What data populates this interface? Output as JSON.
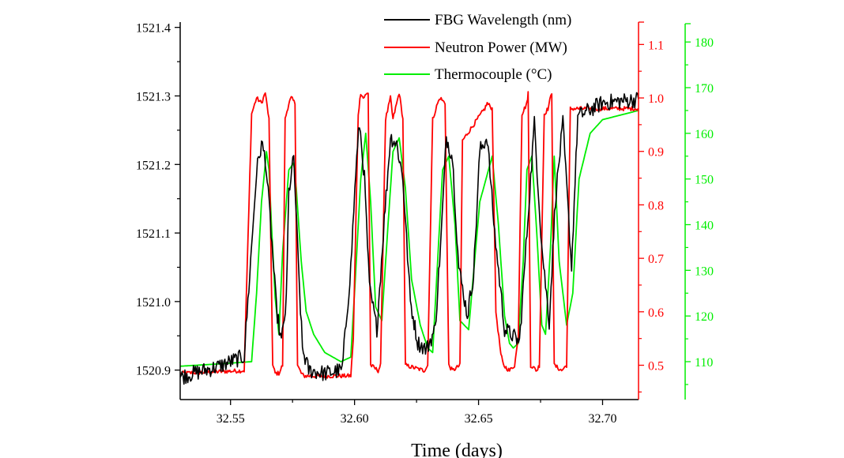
{
  "chart_data": {
    "type": "line",
    "title": "",
    "xlabel": "Time (days)",
    "ylabel": "",
    "xlim": [
      32.5297,
      32.7145
    ],
    "x_ticks": [
      "32.55",
      "32.60",
      "32.65",
      "32.70"
    ],
    "x_tick_values": [
      32.55,
      32.6,
      32.65,
      32.7
    ],
    "x_minor_step": 0.025,
    "grid": false,
    "legend_position": "top",
    "axes": [
      {
        "id": "left",
        "color": "#000000",
        "label": "",
        "ylim": [
          1520.857,
          1521.41
        ],
        "ticks": [
          "1520.9",
          "1521.0",
          "1521.1",
          "1521.2",
          "1521.3",
          "1521.4"
        ],
        "tick_values": [
          1520.9,
          1521.0,
          1521.1,
          1521.2,
          1521.3,
          1521.4
        ],
        "minor_step": 0.05
      },
      {
        "id": "right-red",
        "color": "#ff0000",
        "label": "",
        "ylim": [
          0.4358,
          1.1448
        ],
        "ticks": [
          "0.5",
          "0.6",
          "0.7",
          "0.8",
          "0.9",
          "1.0",
          "1.1"
        ],
        "tick_values": [
          0.5,
          0.6,
          0.7,
          0.8,
          0.9,
          1.0,
          1.1
        ],
        "minor_step": 0.05
      },
      {
        "id": "right-green",
        "color": "#00ee00",
        "label": "",
        "ylim": [
          101.7,
          184.7
        ],
        "ticks": [
          "110",
          "120",
          "130",
          "140",
          "150",
          "160",
          "170",
          "180"
        ],
        "tick_values": [
          110,
          120,
          130,
          140,
          150,
          160,
          170,
          180
        ],
        "minor_step": 5
      }
    ],
    "series": [
      {
        "name": "FBG Wavelength (nm)",
        "axis": "left",
        "color": "#000000",
        "noise": 0.012,
        "x": [
          32.5297,
          32.545,
          32.5555,
          32.5585,
          32.5605,
          32.5625,
          32.564,
          32.566,
          32.5685,
          32.5705,
          32.5725,
          32.5735,
          32.5755,
          32.577,
          32.579,
          32.5815,
          32.588,
          32.595,
          32.5985,
          32.6005,
          32.602,
          32.604,
          32.606,
          32.609,
          32.612,
          32.6145,
          32.617,
          32.6195,
          32.6225,
          32.6255,
          32.629,
          32.6325,
          32.635,
          32.637,
          32.6395,
          32.642,
          32.6455,
          32.648,
          32.6505,
          32.6535,
          32.6565,
          32.6605,
          32.664,
          32.6665,
          32.6695,
          32.6725,
          32.6755,
          32.6785,
          32.681,
          32.684,
          32.6875,
          32.69,
          32.7,
          32.7145
        ],
        "y": [
          1520.89,
          1520.905,
          1520.92,
          1521.08,
          1521.19,
          1521.23,
          1521.21,
          1521.12,
          1520.99,
          1520.94,
          1521.0,
          1521.16,
          1521.21,
          1521.08,
          1520.93,
          1520.9,
          1520.895,
          1520.9,
          1521.05,
          1521.19,
          1521.26,
          1521.18,
          1521.02,
          1520.96,
          1521.12,
          1521.24,
          1521.23,
          1521.18,
          1521.0,
          1520.94,
          1520.93,
          1520.96,
          1521.1,
          1521.24,
          1521.21,
          1521.05,
          1520.98,
          1521.04,
          1521.22,
          1521.24,
          1521.1,
          1520.96,
          1520.95,
          1520.94,
          1521.1,
          1521.26,
          1521.08,
          1520.97,
          1521.15,
          1521.26,
          1521.05,
          1521.27,
          1521.29,
          1521.295
        ]
      },
      {
        "name": "Neutron Power (MW)",
        "axis": "right-red",
        "color": "#ff0000",
        "noise": 0.004,
        "x": [
          32.5297,
          32.5555,
          32.5585,
          32.5605,
          32.5625,
          32.564,
          32.5655,
          32.567,
          32.568,
          32.5695,
          32.571,
          32.572,
          32.5735,
          32.5745,
          32.576,
          32.577,
          32.5785,
          32.5795,
          32.5985,
          32.5995,
          32.6015,
          32.6025,
          32.6035,
          32.6055,
          32.6065,
          32.6095,
          32.6105,
          32.6125,
          32.6145,
          32.6155,
          32.618,
          32.6195,
          32.6205,
          32.628,
          32.6295,
          32.6315,
          32.6335,
          32.6345,
          32.6365,
          32.638,
          32.6395,
          32.6425,
          32.6435,
          32.6525,
          32.6535,
          32.6555,
          32.657,
          32.659,
          32.66,
          32.6625,
          32.6645,
          32.666,
          32.6675,
          32.6685,
          32.6695,
          32.67,
          32.671,
          32.6735,
          32.6745,
          32.6765,
          32.678,
          32.6795,
          32.6805,
          32.6835,
          32.6855,
          32.687,
          32.6905,
          32.7145
        ],
        "y": [
          0.485,
          0.49,
          0.97,
          1.0,
          0.99,
          1.01,
          0.96,
          0.5,
          0.485,
          0.485,
          0.5,
          0.96,
          0.99,
          1.0,
          0.99,
          0.5,
          0.485,
          0.48,
          0.48,
          0.55,
          0.97,
          1.01,
          1.0,
          1.01,
          0.5,
          0.49,
          0.5,
          0.96,
          1.0,
          0.96,
          1.01,
          0.96,
          0.5,
          0.49,
          0.5,
          0.96,
          0.99,
          1.0,
          0.99,
          0.5,
          0.49,
          0.5,
          0.92,
          0.98,
          0.99,
          0.98,
          0.6,
          0.52,
          0.5,
          0.49,
          0.5,
          0.55,
          0.97,
          0.98,
          0.99,
          1.01,
          0.5,
          0.49,
          0.5,
          0.97,
          0.98,
          1.01,
          0.5,
          0.49,
          0.5,
          0.98,
          0.98,
          0.98
        ]
      },
      {
        "name": "Thermocouple (°C)",
        "axis": "right-green",
        "color": "#00ee00",
        "noise": 0,
        "x": [
          32.5297,
          32.545,
          32.5585,
          32.5605,
          32.5625,
          32.5645,
          32.5655,
          32.5665,
          32.568,
          32.5695,
          32.571,
          32.5735,
          32.5755,
          32.5765,
          32.5785,
          32.5805,
          32.5835,
          32.588,
          32.5945,
          32.5985,
          32.6005,
          32.6025,
          32.6045,
          32.6065,
          32.6085,
          32.611,
          32.6135,
          32.6155,
          32.618,
          32.6205,
          32.623,
          32.6265,
          32.6295,
          32.6315,
          32.6335,
          32.6355,
          32.638,
          32.6405,
          32.6425,
          32.646,
          32.6505,
          32.6555,
          32.658,
          32.6605,
          32.6625,
          32.664,
          32.666,
          32.668,
          32.6695,
          32.6715,
          32.6735,
          32.6755,
          32.677,
          32.679,
          32.6805,
          32.6825,
          32.6855,
          32.688,
          32.6905,
          32.695,
          32.7,
          32.7145
        ],
        "y": [
          109,
          109.5,
          110,
          125,
          145,
          156,
          152,
          140,
          124,
          116,
          134,
          152,
          153.5,
          148,
          132,
          121,
          116,
          112,
          110,
          111,
          130,
          150,
          160,
          145,
          122,
          119,
          140,
          156,
          159,
          148,
          128,
          118,
          113,
          112,
          132,
          152,
          155,
          140,
          119,
          117,
          145,
          155,
          140,
          120,
          114,
          113,
          114,
          132,
          152,
          155,
          138,
          118,
          116,
          135,
          155,
          132,
          118,
          125,
          150,
          160,
          163,
          165
        ]
      }
    ]
  }
}
